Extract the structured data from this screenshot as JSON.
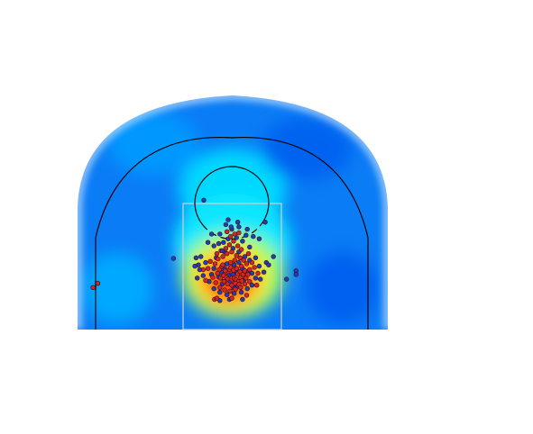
{
  "chart_data": {
    "type": "scatter",
    "subtype": "shot-chart-heatmap",
    "title": "",
    "xlabel": "",
    "ylabel": "",
    "grid": false,
    "legend": "none",
    "xlim": [
      -250,
      250
    ],
    "ylim": [
      -47.5,
      422.5
    ],
    "colors": {
      "made": "#d62728",
      "missed": "#1f3fbf",
      "court_lines": "#000000",
      "paint": "#d0d0d0",
      "heat_low": "#0000ff",
      "heat_mid": "#00ffff",
      "heat_high": "#ff0000"
    },
    "series": [
      {
        "name": "",
        "color": "#d62728",
        "points": [
          [
            -6,
            22
          ],
          [
            -4,
            28
          ],
          [
            -2,
            32
          ],
          [
            3,
            27
          ],
          [
            8,
            30
          ],
          [
            10,
            21
          ],
          [
            14,
            25
          ],
          [
            -11,
            26
          ],
          [
            -14,
            18
          ],
          [
            -9,
            15
          ],
          [
            -6,
            12
          ],
          [
            -1,
            10
          ],
          [
            4,
            14
          ],
          [
            7,
            11
          ],
          [
            11,
            8
          ],
          [
            15,
            15
          ],
          [
            19,
            20
          ],
          [
            22,
            26
          ],
          [
            -17,
            33
          ],
          [
            -21,
            28
          ],
          [
            -24,
            22
          ],
          [
            -19,
            14
          ],
          [
            -13,
            8
          ],
          [
            -7,
            4
          ],
          [
            0,
            2
          ],
          [
            6,
            5
          ],
          [
            12,
            3
          ],
          [
            17,
            9
          ],
          [
            24,
            14
          ],
          [
            27,
            20
          ],
          [
            30,
            28
          ],
          [
            -28,
            38
          ],
          [
            -23,
            46
          ],
          [
            -15,
            50
          ],
          [
            -8,
            55
          ],
          [
            0,
            58
          ],
          [
            8,
            52
          ],
          [
            14,
            48
          ],
          [
            20,
            44
          ],
          [
            25,
            38
          ],
          [
            -32,
            15
          ],
          [
            -27,
            6
          ],
          [
            -20,
            -2
          ],
          [
            -12,
            -6
          ],
          [
            -3,
            -8
          ],
          [
            6,
            -5
          ],
          [
            15,
            -2
          ],
          [
            22,
            4
          ],
          [
            30,
            8
          ],
          [
            -10,
            64
          ],
          [
            -4,
            70
          ],
          [
            3,
            76
          ],
          [
            10,
            68
          ],
          [
            16,
            62
          ],
          [
            -18,
            60
          ],
          [
            -25,
            55
          ],
          [
            28,
            55
          ],
          [
            -36,
            42
          ],
          [
            -40,
            30
          ],
          [
            34,
            40
          ],
          [
            38,
            32
          ],
          [
            -2,
            84
          ],
          [
            5,
            88
          ],
          [
            -8,
            92
          ],
          [
            12,
            90
          ],
          [
            -225,
            5
          ],
          [
            -233,
            -2
          ],
          [
            -29,
            -22
          ],
          [
            -25,
            -20
          ],
          [
            0,
            -20
          ],
          [
            25,
            -15
          ],
          [
            42,
            2
          ],
          [
            44,
            22
          ],
          [
            -44,
            10
          ],
          [
            -48,
            28
          ],
          [
            -2,
            40
          ],
          [
            5,
            44
          ],
          [
            -15,
            36
          ],
          [
            16,
            34
          ]
        ]
      },
      {
        "name": "",
        "color": "#1f3fbf",
        "points": [
          [
            -5,
            18
          ],
          [
            2,
            20
          ],
          [
            9,
            24
          ],
          [
            -12,
            30
          ],
          [
            -8,
            38
          ],
          [
            4,
            36
          ],
          [
            12,
            40
          ],
          [
            18,
            30
          ],
          [
            -18,
            24
          ],
          [
            -22,
            16
          ],
          [
            -16,
            4
          ],
          [
            -4,
            6
          ],
          [
            3,
            -2
          ],
          [
            10,
            0
          ],
          [
            20,
            10
          ],
          [
            26,
            24
          ],
          [
            -30,
            30
          ],
          [
            -26,
            48
          ],
          [
            -12,
            58
          ],
          [
            2,
            64
          ],
          [
            12,
            58
          ],
          [
            22,
            50
          ],
          [
            30,
            44
          ],
          [
            34,
            22
          ],
          [
            -34,
            20
          ],
          [
            -38,
            8
          ],
          [
            -30,
            -4
          ],
          [
            -20,
            -10
          ],
          [
            -8,
            -14
          ],
          [
            4,
            -12
          ],
          [
            16,
            -10
          ],
          [
            26,
            -4
          ],
          [
            34,
            2
          ],
          [
            40,
            14
          ],
          [
            -44,
            40
          ],
          [
            -48,
            18
          ],
          [
            -52,
            50
          ],
          [
            -56,
            36
          ],
          [
            40,
            48
          ],
          [
            46,
            34
          ],
          [
            -6,
            80
          ],
          [
            8,
            82
          ],
          [
            -14,
            74
          ],
          [
            18,
            76
          ],
          [
            -20,
            88
          ],
          [
            24,
            86
          ],
          [
            0,
            96
          ],
          [
            -10,
            104
          ],
          [
            12,
            100
          ],
          [
            -30,
            68
          ],
          [
            30,
            66
          ],
          [
            -60,
            48
          ],
          [
            -62,
            34
          ],
          [
            58,
            40
          ],
          [
            54,
            24
          ],
          [
            48,
            12
          ],
          [
            -4,
            -22
          ],
          [
            -20,
            -24
          ],
          [
            18,
            -22
          ],
          [
            -6,
            112
          ],
          [
            10,
            108
          ],
          [
            -1,
            100
          ],
          [
            -34,
            88
          ],
          [
            36,
            84
          ],
          [
            -40,
            74
          ],
          [
            -98,
            47
          ],
          [
            -47,
            145
          ],
          [
            56,
            108
          ],
          [
            46,
            80
          ],
          [
            92,
            12
          ],
          [
            108,
            26
          ],
          [
            108,
            20
          ],
          [
            70,
            50
          ],
          [
            -58,
            14
          ],
          [
            -54,
            28
          ],
          [
            62,
            36
          ],
          [
            -22,
            72
          ],
          [
            26,
            96
          ],
          [
            -16,
            60
          ]
        ]
      }
    ]
  }
}
